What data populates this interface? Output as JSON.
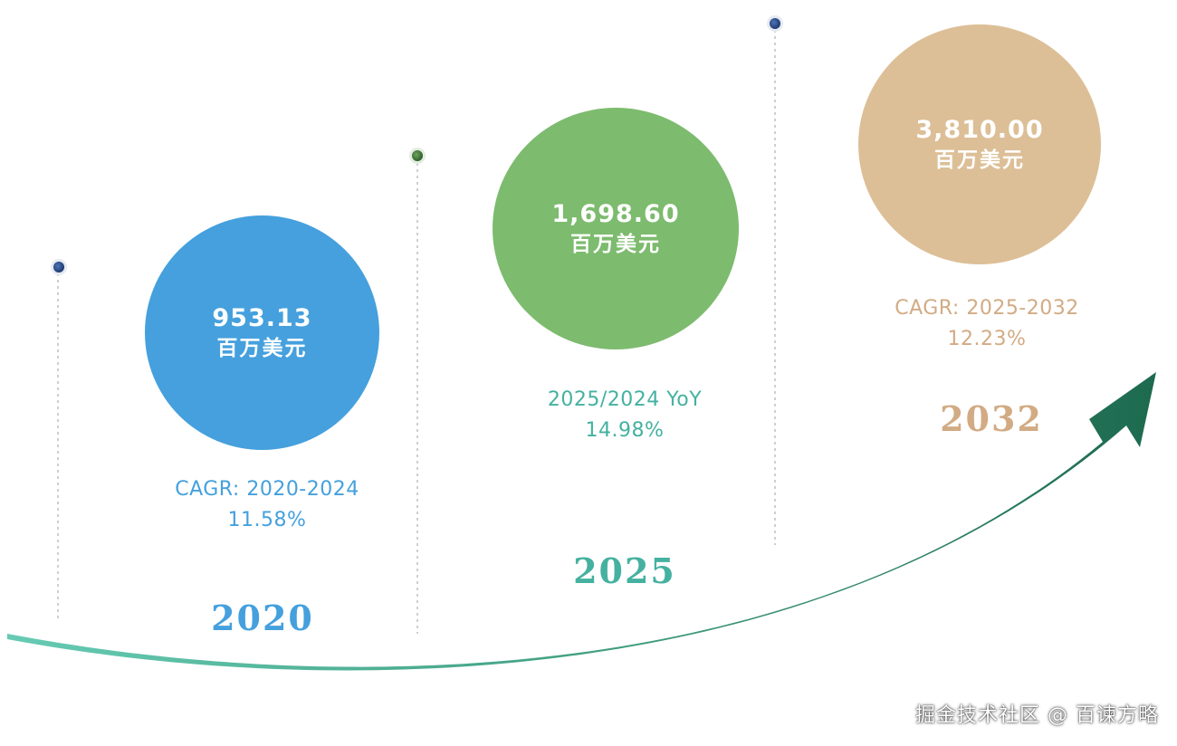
{
  "colors": {
    "blue": "#45a0dd",
    "green": "#7dbb6e",
    "tan": "#dcbf97",
    "teal_text": "#45b1a0",
    "tan_text": "#d2ab84",
    "arrow_start": "#66cbb4",
    "arrow_end": "#1d6a4f",
    "pin_blue": "#2a4a88",
    "pin_green": "#3e7a3a",
    "stem": "#a9b1b7"
  },
  "milestones": [
    {
      "value": "953.13",
      "unit": "百万美元",
      "stat_label": "CAGR: 2020-2024",
      "stat_value": "11.58%",
      "year": "2020"
    },
    {
      "value": "1,698.60",
      "unit": "百万美元",
      "stat_label": "2025/2024 YoY",
      "stat_value": "14.98%",
      "year": "2025"
    },
    {
      "value": "3,810.00",
      "unit": "百万美元",
      "stat_label": "CAGR: 2025-2032",
      "stat_value": "12.23%",
      "year": "2032"
    }
  ],
  "watermark": "掘金技术社区 @ 百谏方略"
}
